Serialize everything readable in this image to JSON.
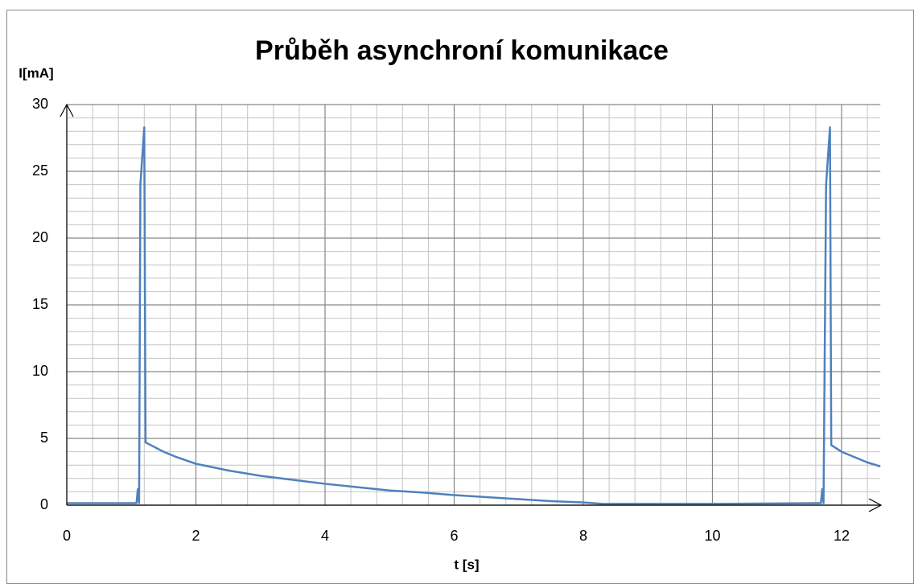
{
  "chart_data": {
    "type": "line",
    "title": "Průběh asynchroní komunikace",
    "y_label": "I[mA]",
    "x_label": "t [s]",
    "x": [
      0,
      1.08,
      1.1,
      1.12,
      1.14,
      1.2,
      1.22,
      1.3,
      1.5,
      1.7,
      2,
      2.5,
      3,
      3.5,
      4,
      4.5,
      5,
      5.5,
      6,
      6.5,
      7,
      7.5,
      8,
      8.3,
      10,
      11.68,
      11.7,
      11.72,
      11.76,
      11.82,
      11.84,
      12,
      12.2,
      12.4,
      12.6
    ],
    "series": [
      {
        "color": "#4f81bd",
        "values": [
          0.15,
          0.15,
          1.2,
          0.15,
          24,
          28.3,
          4.7,
          4.5,
          4.0,
          3.6,
          3.1,
          2.6,
          2.2,
          1.9,
          1.6,
          1.35,
          1.1,
          0.95,
          0.75,
          0.6,
          0.45,
          0.3,
          0.2,
          0.1,
          0.1,
          0.15,
          1.2,
          0.15,
          24,
          28.3,
          4.5,
          4.0,
          3.6,
          3.2,
          2.9
        ]
      }
    ],
    "xlim": [
      0,
      12.6
    ],
    "ylim": [
      0,
      30
    ],
    "xticks": [
      0,
      2,
      4,
      6,
      8,
      10,
      12
    ],
    "yticks": [
      0,
      5,
      10,
      15,
      20,
      25,
      30
    ],
    "x_minor_ticks": [
      0.4,
      0.8,
      1.2,
      1.6,
      2.4,
      2.8,
      3.2,
      3.6,
      4.4,
      4.8,
      5.2,
      5.6,
      6.4,
      6.8,
      7.2,
      7.6,
      8.4,
      8.8,
      9.2,
      9.6,
      10.4,
      10.8,
      11.2,
      11.6,
      12.4
    ],
    "y_minor_ticks": [
      1,
      2,
      3,
      4,
      6,
      7,
      8,
      9,
      11,
      12,
      13,
      14,
      16,
      17,
      18,
      19,
      21,
      22,
      23,
      24,
      26,
      27,
      28,
      29
    ],
    "grid": true
  }
}
